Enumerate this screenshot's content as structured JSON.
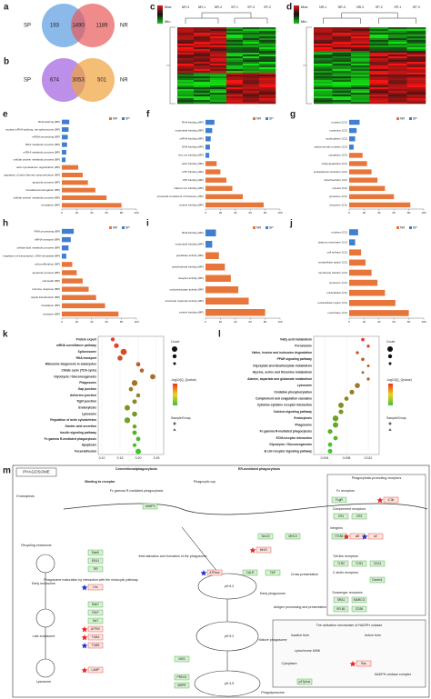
{
  "venns": [
    {
      "label": "a",
      "left": "SP",
      "right": "NR",
      "counts": [
        193,
        1490,
        1189
      ]
    },
    {
      "label": "b",
      "left": "SP",
      "right": "NR",
      "counts": [
        674,
        3053,
        501
      ]
    }
  ],
  "heatmaps": [
    {
      "label": "c",
      "scale": [
        "Max",
        "Min"
      ],
      "columns": [
        "NR-3",
        "NR-1",
        "NR-2",
        "SP-1",
        "SP-3",
        "SP-2"
      ]
    },
    {
      "label": "d",
      "scale": [
        "Max",
        "Min"
      ],
      "columns": [
        "NR-1",
        "NR-3",
        "NR-2",
        "SP-2",
        "SP-1",
        "SP-3"
      ]
    }
  ],
  "bars": [
    {
      "label": "e",
      "categories": [
        "RNA splicing (BP)",
        "nuclear mRNA splicing, via spliceosome (BP)",
        "mRNA processing (BP)",
        "RNA metabolic process (BP)",
        "mRNA metabolic process (BP)",
        "cellular protein metabolic process (BP)",
        "actin cytoskeleton organization (BP)",
        "regulation of actin filament polymerization (BP)",
        "apoptotic process (BP)",
        "translational elongation (BP)",
        "cellular protein metabolic process (BP)",
        "translation (BP)"
      ],
      "series": [
        {
          "name": "NR",
          "color": "#e8763a",
          "values": [
            null,
            null,
            null,
            null,
            null,
            null,
            22,
            28,
            35,
            45,
            60,
            80
          ]
        },
        {
          "name": "SP",
          "color": "#3f7fd0",
          "values": [
            10,
            9,
            8,
            7,
            6,
            5,
            null,
            null,
            null,
            null,
            null,
            null
          ]
        }
      ],
      "xlim": [
        0,
        100
      ],
      "xticks": [
        0,
        20,
        40,
        60,
        80,
        100
      ]
    },
    {
      "label": "f",
      "categories": [
        "RNA binding (MF)",
        "nucleotide binding (MF)",
        "mRNA binding (MF)",
        "DNA binding (MF)",
        "zinc ion binding (MF)",
        "actin binding (MF)",
        "GTP binding (MF)",
        "ATP binding (MF)",
        "calcium ion binding (MF)",
        "structural constituent of ribosome (MF)",
        "protein binding (MF)"
      ],
      "series": [
        {
          "name": "NR",
          "color": "#e8763a",
          "values": [
            null,
            null,
            null,
            null,
            null,
            15,
            20,
            28,
            36,
            50,
            78
          ]
        },
        {
          "name": "SP",
          "color": "#3f7fd0",
          "values": [
            12,
            9,
            7,
            6,
            5,
            null,
            null,
            null,
            null,
            null,
            null
          ]
        }
      ],
      "xlim": [
        0,
        100
      ],
      "xticks": [
        0,
        20,
        40,
        60,
        80,
        100
      ]
    },
    {
      "label": "g",
      "categories": [
        "nucleus (CC)",
        "nucleolus (CC)",
        "nucleoplasm (CC)",
        "spliceosomal complex (CC)",
        "cytoplasm (CC)",
        "Golgi apparatus (CC)",
        "endoplasmic reticulum (CC)",
        "mitochondrion (CC)",
        "cytosol (CC)",
        "lysosome (CC)",
        "ribosome (CC)"
      ],
      "series": [
        {
          "name": "NR",
          "color": "#e8763a",
          "values": [
            null,
            null,
            null,
            null,
            18,
            24,
            30,
            38,
            48,
            60,
            82
          ]
        },
        {
          "name": "SP",
          "color": "#3f7fd0",
          "values": [
            14,
            10,
            8,
            6,
            null,
            null,
            null,
            null,
            null,
            null,
            null
          ]
        }
      ],
      "xlim": [
        0,
        100
      ],
      "xticks": [
        0,
        20,
        40,
        60,
        80,
        100
      ]
    },
    {
      "label": "h",
      "categories": [
        "RNA processing (BP)",
        "mRNA transport (BP)",
        "cellular lipid metabolic process (BP)",
        "regulation of transcription, DNA-templated (BP)",
        "cell proliferation (BP)",
        "apoptotic process (BP)",
        "cell death (BP)",
        "immune response (BP)",
        "signal transduction (BP)",
        "translation (BP)",
        "transport (BP)"
      ],
      "series": [
        {
          "name": "NR",
          "color": "#e8763a",
          "values": [
            null,
            null,
            null,
            null,
            14,
            20,
            28,
            36,
            46,
            58,
            76
          ]
        },
        {
          "name": "SP",
          "color": "#3f7fd0",
          "values": [
            16,
            12,
            9,
            6,
            null,
            null,
            null,
            null,
            null,
            null,
            null
          ]
        }
      ],
      "xlim": [
        0,
        100
      ],
      "xticks": [
        0,
        20,
        40,
        60,
        80,
        100
      ]
    },
    {
      "label": "i",
      "categories": [
        "RNA binding (MF)",
        "nucleotide binding (MF)",
        "peptidase activity (MF)",
        "carbohydrate binding (MF)",
        "receptor activity (MF)",
        "oxidoreductase activity (MF)",
        "structural molecule activity (MF)",
        "protein binding (MF)"
      ],
      "series": [
        {
          "name": "NR",
          "color": "#e8763a",
          "values": [
            null,
            null,
            18,
            26,
            34,
            44,
            58,
            80
          ]
        },
        {
          "name": "SP",
          "color": "#3f7fd0",
          "values": [
            14,
            9,
            null,
            null,
            null,
            null,
            null,
            null
          ]
        }
      ],
      "xlim": [
        0,
        100
      ],
      "xticks": [
        0,
        20,
        40,
        60,
        80,
        100
      ]
    },
    {
      "label": "j",
      "categories": [
        "nucleus (CC)",
        "plasma membrane (CC)",
        "cell surface (CC)",
        "extracellular space (CC)",
        "membrane fraction (CC)",
        "lysosome (CC)",
        "intracellular (CC)",
        "extracellular region (CC)",
        "membrane (CC)"
      ],
      "series": [
        {
          "name": "NR",
          "color": "#e8763a",
          "values": [
            null,
            null,
            16,
            22,
            30,
            38,
            48,
            62,
            80
          ]
        },
        {
          "name": "SP",
          "color": "#3f7fd0",
          "values": [
            12,
            8,
            null,
            null,
            null,
            null,
            null,
            null,
            null
          ]
        }
      ],
      "xlim": [
        0,
        100
      ],
      "xticks": [
        0,
        20,
        40,
        60,
        80,
        100
      ]
    }
  ],
  "dots": [
    {
      "label": "k",
      "categories": [
        "Protein export",
        "mRNA surveillance pathway",
        "Spliceosome",
        "RNA transport",
        "Ribosome biogenesis in eukaryotes",
        "Citrate cycle (TCA cycle)",
        "Glycolysis / Gluconeogenesis",
        "Phagosome",
        "Gap junction",
        "Adherens junction",
        "Tight junction",
        "Endocytosis",
        "Lysosome",
        "Regulation of actin cytoskeleton",
        "Gastric acid secretion",
        "Insulin signaling pathway",
        "Fc gamma R-mediated phagocytosis",
        "Apoptosis",
        "Focal adhesion"
      ],
      "x": [
        0.13,
        0.14,
        0.16,
        0.15,
        0.2,
        0.21,
        0.24,
        0.19,
        0.18,
        0.2,
        0.19,
        0.17,
        0.19,
        0.17,
        0.19,
        0.19,
        0.2,
        0.19,
        0.2
      ],
      "count": [
        8,
        12,
        20,
        14,
        10,
        9,
        15,
        18,
        10,
        9,
        11,
        16,
        14,
        18,
        9,
        11,
        10,
        8,
        16
      ],
      "xlim": [
        0.09,
        0.27
      ],
      "xticks": [
        {
          "value": 0.1,
          "label": "0.10"
        },
        0.15,
        {
          "value": 0.2,
          "label": "0.20"
        },
        0.25
      ],
      "legend": [
        "Count",
        "-log10(Q_Qvalue)",
        "SampleGroup"
      ]
    },
    {
      "label": "l",
      "categories": [
        "Fatty acid metabolism",
        "Peroxisome",
        "Valine, leucine and isoleucine degradation",
        "PPAR signaling pathway",
        "Glyoxylate and dicarboxylate metabolism",
        "Glycine, serine and threonine metabolism",
        "Alanine, aspartate and glutamate metabolism",
        "Lysosome",
        "Oxidative phosphorylation",
        "Complement and coagulation cascades",
        "Cytokine-cytokine receptor interaction",
        "Calcium signaling pathway",
        "Endocytosis",
        "Phagosome",
        "Fc gamma R-mediated phagocytosis",
        "ECM-receptor interaction",
        "Glycolysis / Gluconeogenesis",
        "B cell receptor signaling pathway"
      ],
      "x": [
        0.011,
        0.012,
        0.01,
        0.011,
        0.012,
        0.011,
        0.012,
        0.01,
        0.009,
        0.008,
        0.007,
        0.007,
        0.006,
        0.006,
        0.005,
        0.006,
        0.005,
        0.005
      ],
      "count": [
        6,
        5,
        5,
        6,
        4,
        4,
        5,
        14,
        12,
        10,
        16,
        12,
        18,
        16,
        12,
        10,
        10,
        11
      ],
      "xlim": [
        0.002,
        0.014
      ],
      "xticks": [
        0.004,
        0.008,
        0.012
      ],
      "legend": [
        "Count",
        "-log10(Q_Qvalue)",
        "SampleGroup"
      ]
    }
  ],
  "pathway": {
    "label": "m",
    "title": "PHAGOSOME",
    "texts": [
      "Conventionalphagocytosis",
      "ER-mediated phagocytosis",
      "Binding to receptor",
      "Endocytosis",
      "Phagocytic cup",
      "Fc gamma R-mediated phagocytosis",
      "Recycling endosome",
      "Internalization and formation of the phagosome",
      "Phagosome maturation by interaction with the endocytic pathway",
      "Early endosome",
      "Late endosome",
      "Lysosome",
      "Early phagosome",
      "Mature phagosome",
      "Phagolysosome",
      "Cross-presentation",
      "Antigen processing and presentation",
      "Phagocytosis-promoting receptors",
      "Fc receptors",
      "Complement receptors",
      "Integrins",
      "Toll-like receptors",
      "C-lectin receptors",
      "Scavenger receptors",
      "The activation mechanism of NADPH oxidase",
      "Inactive form",
      "Active form",
      "Cytoplasm",
      "cytochrome b558",
      "NADPH oxidase complex",
      "pH 6.2",
      "pH 5.2",
      "pH 4.5"
    ],
    "genes_green": [
      "Rab5",
      "EEA1",
      "TfR",
      "Rab7",
      "RILP",
      "Stx7",
      "VAMP3",
      "Sec22",
      "CALR",
      "TAP",
      "MHCII",
      "NOS",
      "PRDX1",
      "M6PR",
      "FcgR",
      "CR1",
      "CR3",
      "ITGB1",
      "TLR2",
      "TLR4",
      "CD14",
      "Dectin1",
      "SRA1",
      "MARCO",
      "SR-B1",
      "CD36",
      "p47phox"
    ],
    "genes_red": [
      "Hrs",
      "ATP6V",
      "TUBA",
      "TUBB",
      "LAMP",
      "MHCI",
      "ATPase",
      "iC3b",
      "aM",
      "aV",
      "Rac"
    ]
  }
}
